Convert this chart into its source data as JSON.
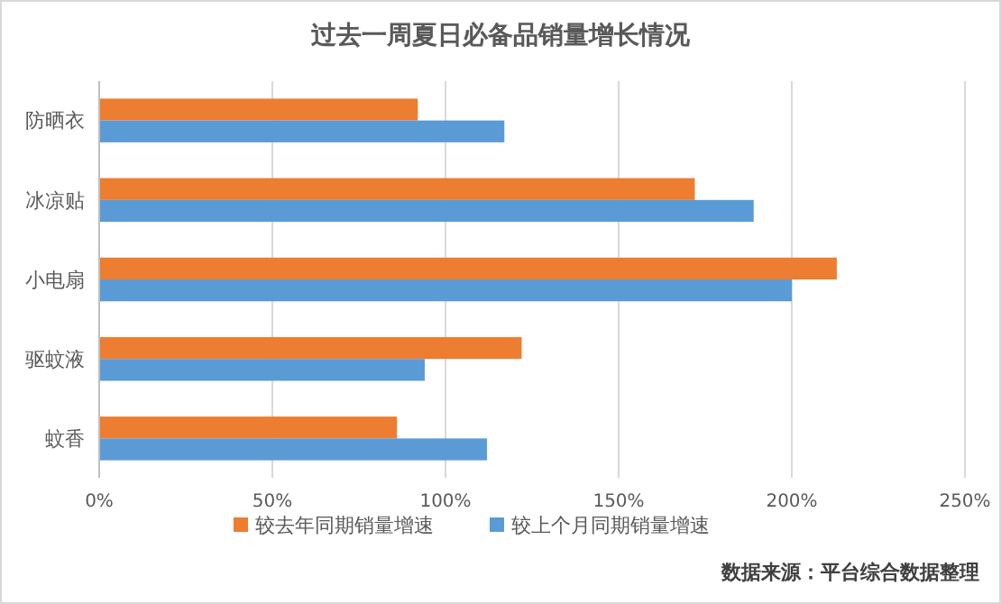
{
  "chart_data": {
    "type": "bar",
    "orientation": "horizontal",
    "title": "过去一周夏日必备品销量增长情况",
    "categories": [
      "防晒衣",
      "冰凉贴",
      "小电扇",
      "驱蚊液",
      "蚊香"
    ],
    "series": [
      {
        "name": "较去年同期销量增速",
        "color": "#ed7d31",
        "values": [
          92,
          172,
          213,
          122,
          86
        ]
      },
      {
        "name": "较上个月同期销量增速",
        "color": "#5b9bd5",
        "values": [
          117,
          189,
          200,
          94,
          112
        ]
      }
    ],
    "xlim": [
      0,
      250
    ],
    "xticks": [
      {
        "value": 0,
        "label": "0%"
      },
      {
        "value": 50,
        "label": "50%"
      },
      {
        "value": 100,
        "label": "100%"
      },
      {
        "value": 150,
        "label": "150%"
      },
      {
        "value": 200,
        "label": "200%"
      },
      {
        "value": 250,
        "label": "250%"
      }
    ],
    "grid": "x",
    "legend": "bottom",
    "annotations": [
      "数据来源：平台综合数据整理"
    ]
  }
}
